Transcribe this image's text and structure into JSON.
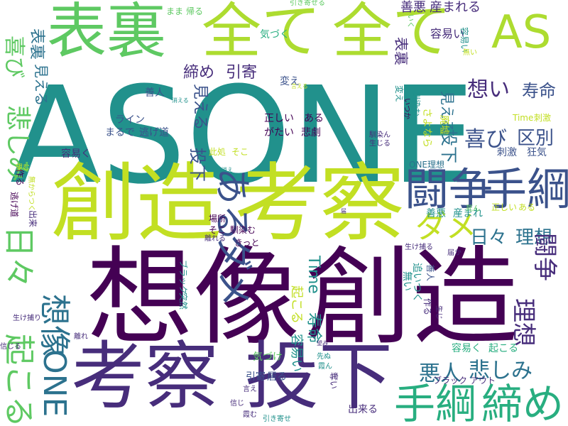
{
  "colors": [
    "#440154",
    "#472d7b",
    "#3b528b",
    "#2c728e",
    "#21918c",
    "#28ae80",
    "#5ec962",
    "#addc30",
    "#fde725"
  ],
  "words": [
    {
      "text": "ASONE",
      "color": "#21918c"
    },
    {
      "text": "想像",
      "color": "#440154"
    },
    {
      "text": "創造",
      "color": "#440154"
    },
    {
      "text": "創造",
      "color": "#c2df23"
    },
    {
      "text": "考察",
      "color": "#c2df23"
    },
    {
      "text": "考察",
      "color": "#472d7b"
    },
    {
      "text": "投下",
      "color": "#472d7b"
    },
    {
      "text": "表裏",
      "color": "#5ec962"
    },
    {
      "text": "全て",
      "color": "#addc30"
    },
    {
      "text": "全て",
      "color": "#addc30"
    },
    {
      "text": "AS",
      "color": "#addc30"
    },
    {
      "text": "闘争",
      "color": "#3b528b"
    },
    {
      "text": "手綱",
      "color": "#3b528b"
    },
    {
      "text": "手綱",
      "color": "#28ae80"
    },
    {
      "text": "締め",
      "color": "#28ae80"
    },
    {
      "text": "ある",
      "color": "#3b528b"
    },
    {
      "text": "ダメ",
      "color": "#3b528b"
    },
    {
      "text": "ダメ",
      "color": "#c2df23"
    },
    {
      "text": "日々",
      "color": "#5ec962"
    },
    {
      "text": "想像",
      "color": "#2c728e"
    },
    {
      "text": "起こる",
      "color": "#5ec962"
    },
    {
      "text": "ONE",
      "color": "#2c728e"
    },
    {
      "text": "想い",
      "color": "#472d7b"
    },
    {
      "text": "寿命",
      "color": "#3b528b"
    },
    {
      "text": "喜び",
      "color": "#3b528b"
    },
    {
      "text": "区別",
      "color": "#3b528b"
    },
    {
      "text": "日々",
      "color": "#2c728e"
    },
    {
      "text": "理想",
      "color": "#2c728e"
    },
    {
      "text": "理想",
      "color": "#472d7b"
    },
    {
      "text": "闘争",
      "color": "#472d7b"
    },
    {
      "text": "悲しみ",
      "color": "#5ec962"
    },
    {
      "text": "喜び",
      "color": "#5ec962"
    },
    {
      "text": "悪人",
      "color": "#2c728e"
    },
    {
      "text": "悲しみ",
      "color": "#2c728e"
    },
    {
      "text": "表裏",
      "color": "#2c728e"
    },
    {
      "text": "表裏",
      "color": "#472d7b"
    },
    {
      "text": "締め",
      "color": "#472d7b"
    },
    {
      "text": "引寄",
      "color": "#472d7b"
    },
    {
      "text": "見える",
      "color": "#2c728e"
    },
    {
      "text": "投下",
      "color": "#3b528b"
    },
    {
      "text": "見える",
      "color": "#3b528b"
    },
    {
      "text": "投下",
      "color": "#2c728e"
    },
    {
      "text": "見える",
      "color": "#2c728e"
    },
    {
      "text": "寿命",
      "color": "#21918c"
    },
    {
      "text": "Time",
      "color": "#21918c"
    },
    {
      "text": "容易い",
      "color": "#21918c"
    },
    {
      "text": "起こる",
      "color": "#c2df23"
    },
    {
      "text": "善悪",
      "color": "#472d7b"
    },
    {
      "text": "産まれる",
      "color": "#472d7b"
    },
    {
      "text": "容易い",
      "color": "#472d7b"
    },
    {
      "text": "気づく",
      "color": "#28ae80"
    },
    {
      "text": "善人",
      "color": "#3b528b"
    },
    {
      "text": "変え",
      "color": "#3b528b"
    },
    {
      "text": "正しい",
      "color": "#440154"
    },
    {
      "text": "ある",
      "color": "#440154"
    },
    {
      "text": "がたい",
      "color": "#440154"
    },
    {
      "text": "悲劇",
      "color": "#440154"
    },
    {
      "text": "ライン",
      "color": "#3b528b"
    },
    {
      "text": "まるで",
      "color": "#3b528b"
    },
    {
      "text": "逃げ道",
      "color": "#3b528b"
    },
    {
      "text": "容易く",
      "color": "#472d7b"
    },
    {
      "text": "此処",
      "color": "#c2df23"
    },
    {
      "text": "そこ",
      "color": "#c2df23"
    },
    {
      "text": "場所",
      "color": "#440154"
    },
    {
      "text": "そこ",
      "color": "#440154"
    },
    {
      "text": "馴染む",
      "color": "#440154"
    },
    {
      "text": "きっと",
      "color": "#440154"
    },
    {
      "text": "善悪",
      "color": "#21918c"
    },
    {
      "text": "産まれ",
      "color": "#21918c"
    },
    {
      "text": "正しい",
      "color": "#c2df23"
    },
    {
      "text": "ある",
      "color": "#c2df23"
    },
    {
      "text": "Time",
      "color": "#c2df23"
    },
    {
      "text": "刺激",
      "color": "#c2df23"
    },
    {
      "text": "刺激",
      "color": "#3b528b"
    },
    {
      "text": "狂気",
      "color": "#3b528b"
    },
    {
      "text": "ONE理想",
      "color": "#2c728e"
    },
    {
      "text": "容易く",
      "color": "#28ae80"
    },
    {
      "text": "起こる",
      "color": "#28ae80"
    },
    {
      "text": "気づけ",
      "color": "#5ec962"
    },
    {
      "text": "引寄",
      "color": "#3b528b"
    },
    {
      "text": "居る",
      "color": "#3b528b"
    },
    {
      "text": "出来る",
      "color": "#472d7b"
    },
    {
      "text": "ブラック",
      "color": "#472d7b"
    },
    {
      "text": "アウト",
      "color": "#472d7b"
    },
    {
      "text": "ブラック",
      "color": "#21918c"
    },
    {
      "text": "突然",
      "color": "#21918c"
    },
    {
      "text": "逃げ道",
      "color": "#440154"
    },
    {
      "text": "作る",
      "color": "#440154"
    },
    {
      "text": "出来",
      "color": "#472d7b"
    },
    {
      "text": "まま",
      "color": "#5ec962"
    },
    {
      "text": "帰る",
      "color": "#5ec962"
    },
    {
      "text": "引き寄せる",
      "color": "#5ec962"
    },
    {
      "text": "容易い",
      "color": "#21918c"
    },
    {
      "text": "無い",
      "color": "#c2df23"
    },
    {
      "text": "消える",
      "color": "#21918c"
    },
    {
      "text": "言える",
      "color": "#c2df23"
    },
    {
      "text": "廃墟",
      "color": "#c2df23"
    },
    {
      "text": "さよなら",
      "color": "#c2df23"
    },
    {
      "text": "馴染む",
      "color": "#21918c"
    },
    {
      "text": "変え",
      "color": "#21918c"
    },
    {
      "text": "いつか",
      "color": "#440154"
    },
    {
      "text": "作る",
      "color": "#472d7b"
    },
    {
      "text": "生じ",
      "color": "#472d7b"
    },
    {
      "text": "追いつく",
      "color": "#21918c"
    },
    {
      "text": "無い",
      "color": "#21918c"
    },
    {
      "text": "善人",
      "color": "#3b528b"
    },
    {
      "text": "生け捕る",
      "color": "#472d7b"
    },
    {
      "text": "届か",
      "color": "#472d7b"
    },
    {
      "text": "離れる",
      "color": "#472d7b"
    },
    {
      "text": "無からつく",
      "color": "#c2df23"
    },
    {
      "text": "望む",
      "color": "#c2df23"
    },
    {
      "text": "消え",
      "color": "#21918c"
    },
    {
      "text": "生け捕り",
      "color": "#472d7b"
    },
    {
      "text": "信じる",
      "color": "#472d7b"
    },
    {
      "text": "離れ",
      "color": "#472d7b"
    },
    {
      "text": "言え",
      "color": "#472d7b"
    },
    {
      "text": "信じ",
      "color": "#472d7b"
    },
    {
      "text": "霞む",
      "color": "#472d7b"
    },
    {
      "text": "引き寄せ",
      "color": "#21918c"
    },
    {
      "text": "先ぬ",
      "color": "#21918c"
    },
    {
      "text": "霞ん",
      "color": "#21918c"
    },
    {
      "text": "望み",
      "color": "#472d7b"
    },
    {
      "text": "奪い",
      "color": "#472d7b"
    },
    {
      "text": "馴染ん",
      "color": "#472d7b"
    },
    {
      "text": "生じる",
      "color": "#472d7b"
    },
    {
      "text": "死ん",
      "color": "#5ec962"
    },
    {
      "text": "届",
      "color": "#472d7b"
    },
    {
      "text": "いく",
      "color": "#5ec962"
    }
  ]
}
